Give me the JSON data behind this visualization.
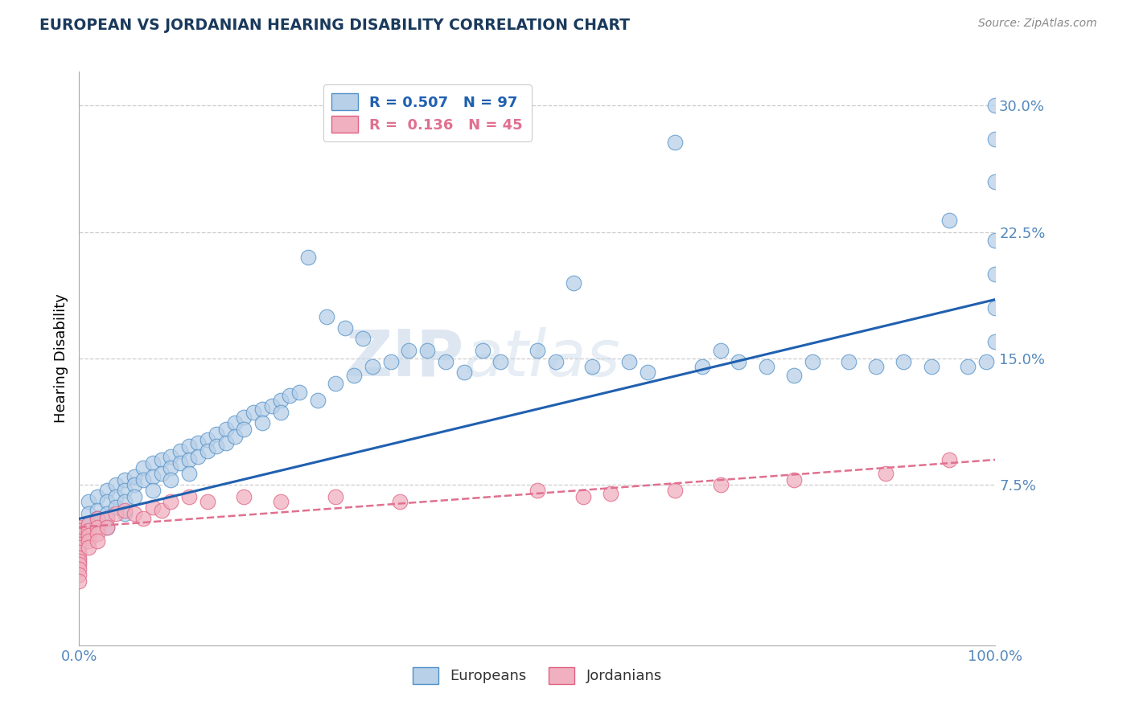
{
  "title": "EUROPEAN VS JORDANIAN HEARING DISABILITY CORRELATION CHART",
  "source": "Source: ZipAtlas.com",
  "ylabel": "Hearing Disability",
  "watermark_zip": "ZIP",
  "watermark_atlas": "atlas",
  "xlim": [
    0.0,
    1.0
  ],
  "ylim": [
    -0.02,
    0.32
  ],
  "yticks": [
    0.075,
    0.15,
    0.225,
    0.3
  ],
  "ytick_labels": [
    "7.5%",
    "15.0%",
    "22.5%",
    "30.0%"
  ],
  "xtick_labels": [
    "0.0%",
    "100.0%"
  ],
  "euro_R": 0.507,
  "euro_N": 97,
  "jord_R": 0.136,
  "jord_N": 45,
  "euro_color": "#b8d0e8",
  "jord_color": "#f0b0c0",
  "euro_edge_color": "#5090c8",
  "jord_edge_color": "#e06080",
  "euro_line_color": "#2060b0",
  "jord_line_color": "#e07090",
  "background_color": "#ffffff",
  "grid_color": "#cccccc",
  "title_color": "#1a3a5c",
  "axis_color": "#5588bb",
  "euro_line_start_y": 0.055,
  "euro_line_end_y": 0.185,
  "jord_line_start_y": 0.05,
  "jord_line_end_y": 0.09,
  "euro_scatter_x": [
    0.01,
    0.01,
    0.01,
    0.02,
    0.02,
    0.02,
    0.03,
    0.03,
    0.03,
    0.03,
    0.04,
    0.04,
    0.04,
    0.05,
    0.05,
    0.05,
    0.05,
    0.06,
    0.06,
    0.06,
    0.07,
    0.07,
    0.08,
    0.08,
    0.08,
    0.09,
    0.09,
    0.1,
    0.1,
    0.1,
    0.11,
    0.11,
    0.12,
    0.12,
    0.12,
    0.13,
    0.13,
    0.14,
    0.14,
    0.15,
    0.15,
    0.16,
    0.16,
    0.17,
    0.17,
    0.18,
    0.18,
    0.19,
    0.2,
    0.2,
    0.21,
    0.22,
    0.22,
    0.23,
    0.24,
    0.25,
    0.26,
    0.27,
    0.28,
    0.29,
    0.3,
    0.31,
    0.32,
    0.34,
    0.36,
    0.38,
    0.4,
    0.42,
    0.44,
    0.46,
    0.5,
    0.52,
    0.54,
    0.56,
    0.6,
    0.62,
    0.65,
    0.68,
    0.7,
    0.72,
    0.75,
    0.78,
    0.8,
    0.84,
    0.87,
    0.9,
    0.93,
    0.95,
    0.97,
    0.99,
    1.0,
    1.0,
    1.0,
    1.0,
    1.0,
    1.0,
    1.0
  ],
  "euro_scatter_y": [
    0.065,
    0.058,
    0.052,
    0.068,
    0.06,
    0.055,
    0.072,
    0.065,
    0.058,
    0.05,
    0.075,
    0.068,
    0.062,
    0.078,
    0.072,
    0.065,
    0.058,
    0.08,
    0.075,
    0.068,
    0.085,
    0.078,
    0.088,
    0.08,
    0.072,
    0.09,
    0.082,
    0.092,
    0.085,
    0.078,
    0.095,
    0.088,
    0.098,
    0.09,
    0.082,
    0.1,
    0.092,
    0.102,
    0.095,
    0.105,
    0.098,
    0.108,
    0.1,
    0.112,
    0.104,
    0.115,
    0.108,
    0.118,
    0.12,
    0.112,
    0.122,
    0.125,
    0.118,
    0.128,
    0.13,
    0.21,
    0.125,
    0.175,
    0.135,
    0.168,
    0.14,
    0.162,
    0.145,
    0.148,
    0.155,
    0.155,
    0.148,
    0.142,
    0.155,
    0.148,
    0.155,
    0.148,
    0.195,
    0.145,
    0.148,
    0.142,
    0.278,
    0.145,
    0.155,
    0.148,
    0.145,
    0.14,
    0.148,
    0.148,
    0.145,
    0.148,
    0.145,
    0.232,
    0.145,
    0.148,
    0.3,
    0.28,
    0.255,
    0.22,
    0.2,
    0.18,
    0.16
  ],
  "jord_scatter_x": [
    0.0,
    0.0,
    0.0,
    0.0,
    0.0,
    0.0,
    0.0,
    0.0,
    0.0,
    0.0,
    0.0,
    0.0,
    0.0,
    0.01,
    0.01,
    0.01,
    0.01,
    0.01,
    0.02,
    0.02,
    0.02,
    0.02,
    0.03,
    0.03,
    0.04,
    0.05,
    0.06,
    0.07,
    0.08,
    0.09,
    0.1,
    0.12,
    0.14,
    0.18,
    0.22,
    0.28,
    0.35,
    0.5,
    0.55,
    0.58,
    0.65,
    0.7,
    0.78,
    0.88,
    0.95
  ],
  "jord_scatter_y": [
    0.05,
    0.048,
    0.045,
    0.042,
    0.04,
    0.038,
    0.035,
    0.032,
    0.03,
    0.028,
    0.025,
    0.022,
    0.018,
    0.052,
    0.048,
    0.045,
    0.042,
    0.038,
    0.055,
    0.05,
    0.046,
    0.042,
    0.055,
    0.05,
    0.058,
    0.06,
    0.058,
    0.055,
    0.062,
    0.06,
    0.065,
    0.068,
    0.065,
    0.068,
    0.065,
    0.068,
    0.065,
    0.072,
    0.068,
    0.07,
    0.072,
    0.075,
    0.078,
    0.082,
    0.09
  ]
}
